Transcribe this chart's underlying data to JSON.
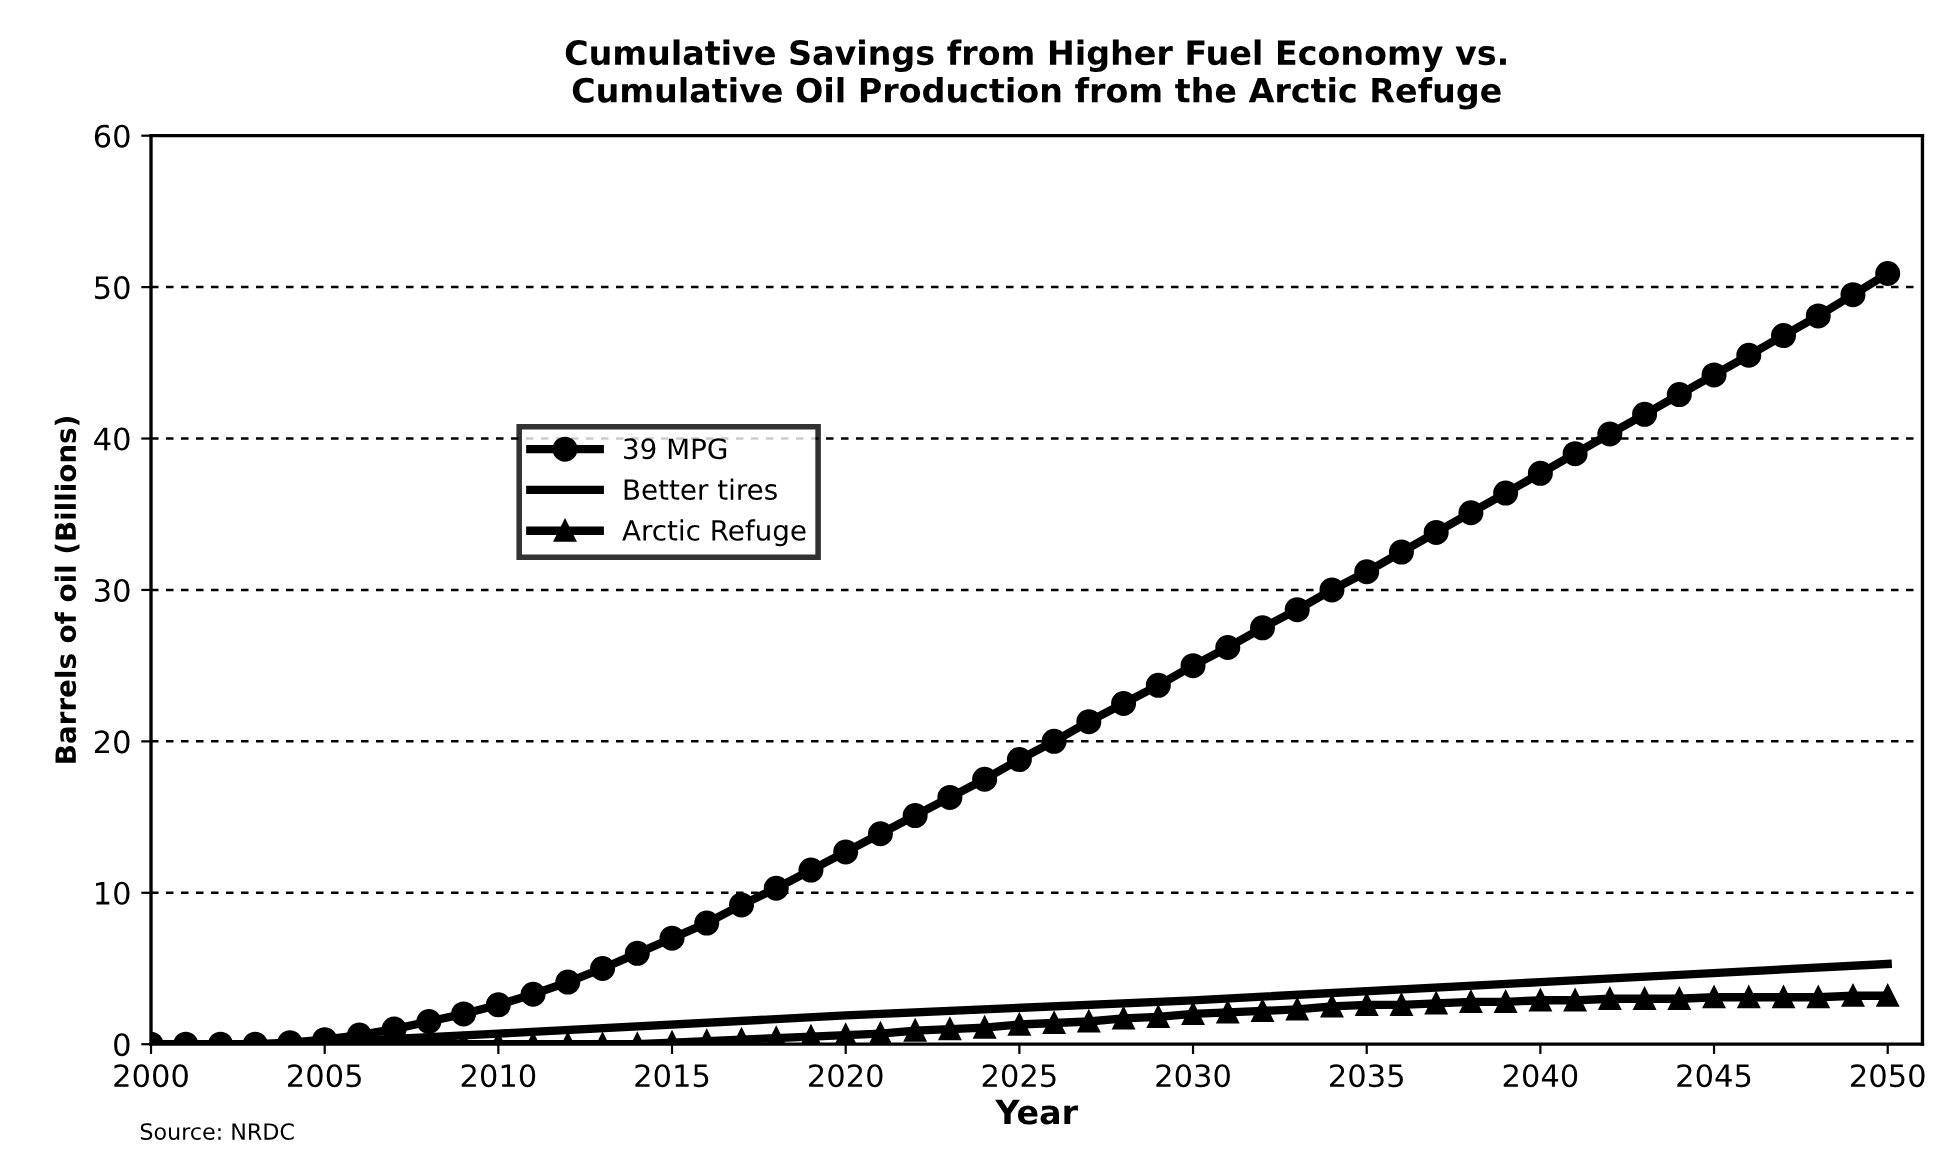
{
  "chart_data": {
    "type": "line",
    "title": "Cumulative Savings from Higher Fuel Economy vs.\nCumulative Oil Production from the Arctic Refuge",
    "xlabel": "Year",
    "ylabel": "Barrels of oil (Billions)",
    "xlim": [
      2000,
      2051
    ],
    "xticks": [
      2000,
      2005,
      2010,
      2015,
      2020,
      2025,
      2030,
      2035,
      2040,
      2045,
      2050
    ],
    "ylim": [
      0,
      60
    ],
    "yticks": [
      0,
      10,
      20,
      30,
      40,
      50,
      60
    ],
    "grid": "y",
    "legend": "top left",
    "annotations": [
      "Source: NRDC"
    ],
    "series": [
      {
        "name": "39 MPG",
        "color": "#000000",
        "marker": "circle",
        "x": [
          2000,
          2001,
          2002,
          2003,
          2004,
          2005,
          2006,
          2007,
          2008,
          2009,
          2010,
          2011,
          2012,
          2013,
          2014,
          2015,
          2016,
          2017,
          2018,
          2019,
          2020,
          2021,
          2022,
          2023,
          2024,
          2025,
          2026,
          2027,
          2028,
          2029,
          2030,
          2031,
          2032,
          2033,
          2034,
          2035,
          2036,
          2037,
          2038,
          2039,
          2040,
          2041,
          2042,
          2043,
          2044,
          2045,
          2046,
          2047,
          2048,
          2049,
          2050
        ],
        "values": [
          0,
          0,
          0,
          0,
          0.1,
          0.3,
          0.6,
          1.0,
          1.5,
          2.0,
          2.6,
          3.3,
          4.1,
          5.0,
          6.0,
          7.0,
          8.0,
          9.2,
          10.3,
          11.5,
          12.7,
          13.9,
          15.1,
          16.3,
          17.5,
          18.8,
          20.0,
          21.3,
          22.5,
          23.7,
          25.0,
          26.2,
          27.5,
          28.7,
          30.0,
          31.2,
          32.5,
          33.8,
          35.1,
          36.4,
          37.7,
          39.0,
          40.3,
          41.6,
          42.9,
          44.2,
          45.5,
          46.8,
          48.1,
          49.5,
          50.9
        ]
      },
      {
        "name": "Better tires",
        "color": "#000000",
        "marker": "none",
        "x": [
          2004,
          2010,
          2020,
          2030,
          2040,
          2050
        ],
        "values": [
          0,
          0.7,
          1.9,
          2.9,
          4.1,
          5.3
        ]
      },
      {
        "name": "Arctic Refuge",
        "color": "#000000",
        "marker": "triangle",
        "x": [
          2004,
          2005,
          2006,
          2007,
          2008,
          2009,
          2010,
          2011,
          2012,
          2013,
          2014,
          2015,
          2016,
          2017,
          2018,
          2019,
          2020,
          2021,
          2022,
          2023,
          2024,
          2025,
          2026,
          2027,
          2028,
          2029,
          2030,
          2031,
          2032,
          2033,
          2034,
          2035,
          2036,
          2037,
          2038,
          2039,
          2040,
          2041,
          2042,
          2043,
          2044,
          2045,
          2046,
          2047,
          2048,
          2049,
          2050
        ],
        "values": [
          0,
          0,
          0,
          0,
          0,
          0,
          0,
          0,
          0,
          0,
          0,
          0.1,
          0.2,
          0.3,
          0.4,
          0.5,
          0.6,
          0.7,
          0.9,
          1.0,
          1.1,
          1.3,
          1.4,
          1.5,
          1.7,
          1.8,
          2.0,
          2.1,
          2.2,
          2.3,
          2.5,
          2.6,
          2.6,
          2.7,
          2.8,
          2.8,
          2.9,
          2.9,
          3.0,
          3.0,
          3.0,
          3.1,
          3.1,
          3.1,
          3.1,
          3.2,
          3.2
        ]
      }
    ]
  }
}
